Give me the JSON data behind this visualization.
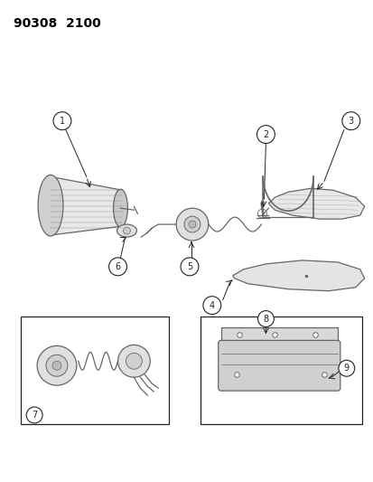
{
  "title_text": "90308  2100",
  "background_color": "#ffffff",
  "fig_width": 4.14,
  "fig_height": 5.33,
  "dpi": 100
}
